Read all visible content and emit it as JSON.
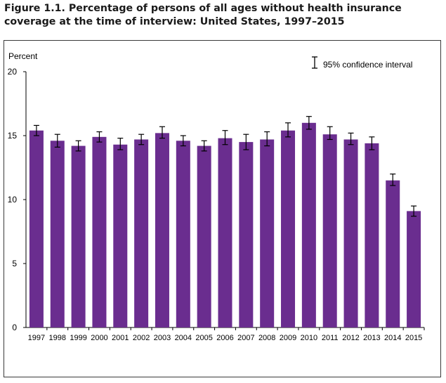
{
  "figure": {
    "title": "Figure 1.1. Percentage of persons of all ages without health insurance coverage at the time of interview: United States, 1997–2015"
  },
  "colors": {
    "bar": "#6a2d8f",
    "error_bar": "#000000",
    "axis": "#000000"
  },
  "chart_data": {
    "type": "bar",
    "title": "Figure 1.1. Percentage of persons of all ages without health insurance coverage at the time of interview: United States, 1997–2015",
    "ylabel": "Percent",
    "xlabel": "",
    "ylim": [
      0,
      20
    ],
    "yticks": [
      "0",
      "5",
      "10",
      "15",
      "20"
    ],
    "categories": [
      "1997",
      "1998",
      "1999",
      "2000",
      "2001",
      "2002",
      "2003",
      "2004",
      "2005",
      "2006",
      "2007",
      "2008",
      "2009",
      "2010",
      "2011",
      "2012",
      "2013",
      "2014",
      "2015"
    ],
    "values": [
      15.4,
      14.6,
      14.2,
      14.9,
      14.3,
      14.7,
      15.2,
      14.6,
      14.2,
      14.8,
      14.5,
      14.7,
      15.4,
      16.0,
      15.1,
      14.7,
      14.4,
      11.5,
      9.1
    ],
    "ci_low": [
      15.0,
      14.1,
      13.8,
      14.5,
      13.9,
      14.3,
      14.8,
      14.2,
      13.8,
      14.3,
      13.9,
      14.2,
      14.9,
      15.5,
      14.7,
      14.3,
      13.9,
      11.1,
      8.7
    ],
    "ci_high": [
      15.8,
      15.1,
      14.6,
      15.3,
      14.8,
      15.1,
      15.7,
      15.0,
      14.6,
      15.4,
      15.1,
      15.3,
      16.0,
      16.5,
      15.7,
      15.2,
      14.9,
      12.0,
      9.5
    ],
    "legend": {
      "label": "95% confidence  interval",
      "position": "top-right"
    },
    "grid": false
  }
}
